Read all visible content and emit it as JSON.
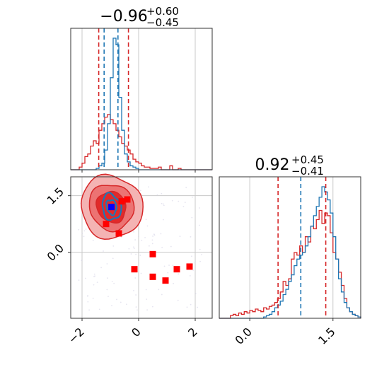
{
  "chart_data": {
    "type": "corner",
    "colors": {
      "posterior_a": "#d62728",
      "posterior_b": "#1f77b4",
      "marker_secondary": "#ff0000",
      "marker_primary": "#0000ff",
      "grid": "#c8c8c8",
      "scatter": "#d6d3e6",
      "fill_outer": "#f4b3b3",
      "fill_mid": "#ec7373",
      "fill_inner": "#e12a2a"
    },
    "param1": {
      "title_median": "−0.96",
      "title_upper": "+0.60",
      "title_lower": "−0.45",
      "xlim": [
        -2.4,
        2.6
      ],
      "grid_x": [
        -2,
        0,
        2
      ],
      "hist_bin_edges_start": -2.4,
      "hist_bin_width": 0.1,
      "hist_a": [
        0,
        0,
        0,
        0.02,
        0.05,
        0.1,
        0.12,
        0.18,
        0.22,
        0.2,
        0.3,
        0.35,
        0.4,
        0.42,
        0.38,
        0.35,
        0.3,
        0.25,
        0.2,
        0.18,
        0.15,
        0.12,
        0.08,
        0.06,
        0.05,
        0.03,
        0.02,
        0.02,
        0.01,
        0.01,
        0.01,
        0.02,
        0,
        0,
        0,
        0.03,
        0,
        0,
        0.01,
        0,
        0,
        0,
        0,
        0,
        0,
        0,
        0,
        0,
        0,
        0
      ],
      "hist_b": [
        0,
        0,
        0,
        0,
        0,
        0,
        0,
        0,
        0,
        0.01,
        0.03,
        0.05,
        0.15,
        0.35,
        0.7,
        1.0,
        0.95,
        0.55,
        0.3,
        0.12,
        0.06,
        0.03,
        0.02,
        0.01,
        0,
        0,
        0,
        0,
        0,
        0,
        0,
        0,
        0,
        0,
        0,
        0,
        0,
        0,
        0,
        0,
        0,
        0,
        0,
        0,
        0,
        0,
        0,
        0,
        0,
        0
      ],
      "quantiles_a": [
        -1.41,
        -0.36
      ],
      "quantiles_b": [
        -1.22,
        -0.73
      ]
    },
    "param2": {
      "title_median": "0.92",
      "title_upper": "+0.45",
      "title_lower": "−0.41",
      "xlim": [
        -0.55,
        2.0
      ],
      "grid_x": [
        0.0,
        1.5
      ],
      "hist_bin_edges_start": -0.55,
      "hist_bin_width": 0.05,
      "hist_a": [
        0,
        0,
        0,
        0,
        0.02,
        0.03,
        0.02,
        0.04,
        0.03,
        0.05,
        0.04,
        0.06,
        0.05,
        0.07,
        0.06,
        0.05,
        0.08,
        0.07,
        0.09,
        0.1,
        0.12,
        0.15,
        0.2,
        0.28,
        0.25,
        0.3,
        0.45,
        0.5,
        0.48,
        0.55,
        0.5,
        0.62,
        0.58,
        0.7,
        0.68,
        0.75,
        0.82,
        0.72,
        0.8,
        0.78,
        0.65,
        0.5,
        0.45,
        0.35,
        0.25,
        0.15,
        0.08,
        0.05,
        0.03,
        0.02,
        0.01
      ],
      "hist_b": [
        0,
        0,
        0,
        0,
        0,
        0,
        0,
        0,
        0,
        0,
        0,
        0,
        0,
        0,
        0,
        0,
        0.01,
        0.02,
        0.03,
        0.05,
        0.08,
        0.1,
        0.13,
        0.18,
        0.22,
        0.28,
        0.33,
        0.4,
        0.45,
        0.48,
        0.5,
        0.55,
        0.62,
        0.7,
        0.78,
        0.85,
        0.92,
        1.0,
        0.96,
        0.9,
        0.8,
        0.62,
        0.45,
        0.3,
        0.2,
        0.12,
        0.08,
        0.05,
        0.03,
        0.02,
        0.01
      ],
      "quantiles_a": [
        0.51,
        1.37
      ],
      "quantiles_b": [
        0.92
      ],
      "quantiles_b_extra": [
        1.37
      ]
    },
    "joint": {
      "xlim": [
        -2.4,
        2.6
      ],
      "ylim": [
        -1.75,
        2.0
      ],
      "x_ticks": [
        -2,
        0,
        2
      ],
      "x_tick_labels": [
        "−2",
        "0",
        "2"
      ],
      "y_ticks": [
        0.0,
        1.5
      ],
      "y_tick_labels": [
        "0.0",
        "1.5"
      ],
      "center": [
        -0.96,
        1.2
      ],
      "marker_primary": [
        -0.96,
        1.2
      ],
      "markers_secondary": [
        [
          -0.4,
          1.4
        ],
        [
          -0.6,
          1.35
        ],
        [
          -1.15,
          0.75
        ],
        [
          -0.7,
          0.5
        ],
        [
          0.5,
          -0.05
        ],
        [
          -0.15,
          -0.45
        ],
        [
          0.5,
          -0.65
        ],
        [
          0.95,
          -0.75
        ],
        [
          1.35,
          -0.45
        ],
        [
          1.8,
          -0.38
        ]
      ],
      "contours_a": [
        {
          "level": "outer",
          "rx": 2.15,
          "ry": 1.7
        },
        {
          "level": "mid",
          "rx": 1.55,
          "ry": 1.25
        },
        {
          "level": "inner",
          "rx": 1.0,
          "ry": 0.85
        }
      ],
      "contours_b": [
        {
          "level": "outer",
          "rx": 0.65,
          "ry": 0.7
        },
        {
          "level": "inner",
          "rx": 0.35,
          "ry": 0.4
        }
      ],
      "scatter_seed": 7
    },
    "param2_tick_labels": [
      "0.0",
      "1.5"
    ]
  }
}
